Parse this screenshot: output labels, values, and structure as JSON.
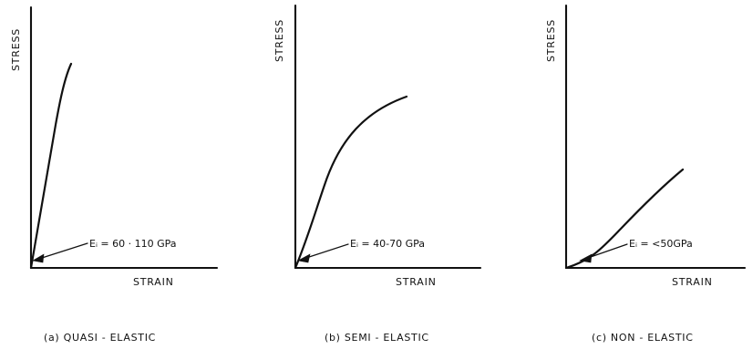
{
  "figure": {
    "panels": [
      {
        "id": "a",
        "y_label": "STRESS",
        "x_label": "STRAIN",
        "annotation": "Eᵢ = 60 · 110 GPa",
        "caption": "(a) QUASI - ELASTIC"
      },
      {
        "id": "b",
        "y_label": "STRESS",
        "x_label": "STRAIN",
        "annotation": "Eᵢ = 40-70 GPa",
        "caption": "(b) SEMI - ELASTIC"
      },
      {
        "id": "c",
        "y_label": "STRESS",
        "x_label": "STRAIN",
        "annotation": "Eᵢ = <50GPa",
        "caption": "(c) NON - ELASTIC"
      }
    ]
  }
}
